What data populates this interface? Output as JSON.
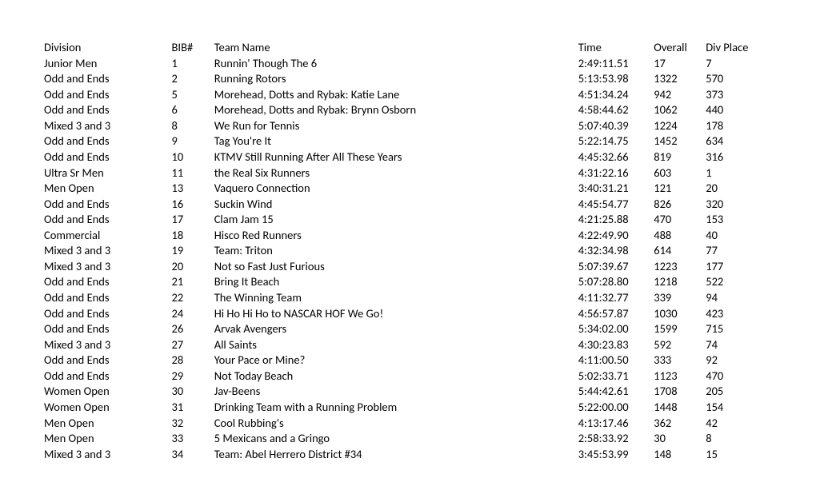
{
  "table": {
    "columns": {
      "division": "Division",
      "bib": "BIB#",
      "team": "Team Name",
      "time": "Time",
      "overall": "Overall",
      "divplace": "Div Place"
    },
    "rows": [
      {
        "division": "Junior Men",
        "bib": "1",
        "team": "Runnin' Though The 6",
        "time": "2:49:11.51",
        "overall": "17",
        "divplace": "7"
      },
      {
        "division": "Odd and Ends",
        "bib": "2",
        "team": "Running Rotors",
        "time": "5:13:53.98",
        "overall": "1322",
        "divplace": "570"
      },
      {
        "division": "Odd and Ends",
        "bib": "5",
        "team": "Morehead, Dotts and Rybak: Katie Lane",
        "time": "4:51:34.24",
        "overall": "942",
        "divplace": "373"
      },
      {
        "division": "Odd and Ends",
        "bib": "6",
        "team": "Morehead, Dotts and Rybak: Brynn Osborn",
        "time": "4:58:44.62",
        "overall": "1062",
        "divplace": "440"
      },
      {
        "division": "Mixed 3 and 3",
        "bib": "8",
        "team": "We Run for Tennis",
        "time": "5:07:40.39",
        "overall": "1224",
        "divplace": "178"
      },
      {
        "division": "Odd and Ends",
        "bib": "9",
        "team": "Tag You're It",
        "time": "5:22:14.75",
        "overall": "1452",
        "divplace": "634"
      },
      {
        "division": "Odd and Ends",
        "bib": "10",
        "team": "KTMV Still Running After All These Years",
        "time": "4:45:32.66",
        "overall": "819",
        "divplace": "316"
      },
      {
        "division": "Ultra Sr Men",
        "bib": "11",
        "team": "the Real Six Runners",
        "time": "4:31:22.16",
        "overall": "603",
        "divplace": "1"
      },
      {
        "division": "Men Open",
        "bib": "13",
        "team": "Vaquero Connection",
        "time": "3:40:31.21",
        "overall": "121",
        "divplace": "20"
      },
      {
        "division": "Odd and Ends",
        "bib": "16",
        "team": "Suckin Wind",
        "time": "4:45:54.77",
        "overall": "826",
        "divplace": "320"
      },
      {
        "division": "Odd and Ends",
        "bib": "17",
        "team": "Clam Jam 15",
        "time": "4:21:25.88",
        "overall": "470",
        "divplace": "153"
      },
      {
        "division": "Commercial",
        "bib": "18",
        "team": "Hisco Red Runners",
        "time": "4:22:49.90",
        "overall": "488",
        "divplace": "40"
      },
      {
        "division": "Mixed 3 and 3",
        "bib": "19",
        "team": "Team: Triton",
        "time": "4:32:34.98",
        "overall": "614",
        "divplace": "77"
      },
      {
        "division": "Mixed 3 and 3",
        "bib": "20",
        "team": "Not so Fast Just Furious",
        "time": "5:07:39.67",
        "overall": "1223",
        "divplace": "177"
      },
      {
        "division": "Odd and Ends",
        "bib": "21",
        "team": "Bring It Beach",
        "time": "5:07:28.80",
        "overall": "1218",
        "divplace": "522"
      },
      {
        "division": "Odd and Ends",
        "bib": "22",
        "team": "The Winning Team",
        "time": "4:11:32.77",
        "overall": "339",
        "divplace": "94"
      },
      {
        "division": "Odd and Ends",
        "bib": "24",
        "team": "Hi Ho Hi Ho to NASCAR HOF We Go!",
        "time": "4:56:57.87",
        "overall": "1030",
        "divplace": "423"
      },
      {
        "division": "Odd and Ends",
        "bib": "26",
        "team": "Arvak Avengers",
        "time": "5:34:02.00",
        "overall": "1599",
        "divplace": "715"
      },
      {
        "division": "Mixed 3 and 3",
        "bib": "27",
        "team": "All Saints",
        "time": "4:30:23.83",
        "overall": "592",
        "divplace": "74"
      },
      {
        "division": "Odd and Ends",
        "bib": "28",
        "team": "Your Pace or Mine?",
        "time": "4:11:00.50",
        "overall": "333",
        "divplace": "92"
      },
      {
        "division": "Odd and Ends",
        "bib": "29",
        "team": "Not Today Beach",
        "time": "5:02:33.71",
        "overall": "1123",
        "divplace": "470"
      },
      {
        "division": "Women Open",
        "bib": "30",
        "team": "Jav-Beens",
        "time": "5:44:42.61",
        "overall": "1708",
        "divplace": "205"
      },
      {
        "division": "Women Open",
        "bib": "31",
        "team": "Drinking Team with a Running Problem",
        "time": "5:22:00.00",
        "overall": "1448",
        "divplace": "154"
      },
      {
        "division": "Men Open",
        "bib": "32",
        "team": "Cool Rubbing's",
        "time": "4:13:17.46",
        "overall": "362",
        "divplace": "42"
      },
      {
        "division": "Men Open",
        "bib": "33",
        "team": "5 Mexicans and a Gringo",
        "time": "2:58:33.92",
        "overall": "30",
        "divplace": "8"
      },
      {
        "division": "Mixed 3 and 3",
        "bib": "34",
        "team": "Team: Abel Herrero District #34",
        "time": "3:45:53.99",
        "overall": "148",
        "divplace": "15"
      }
    ]
  }
}
